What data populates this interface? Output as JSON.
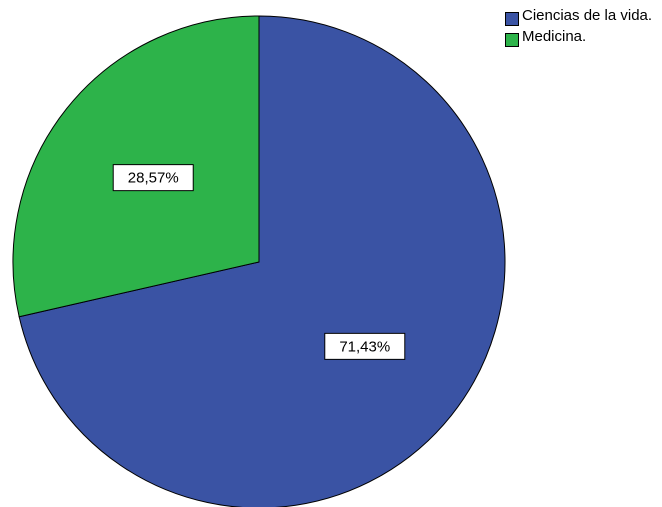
{
  "chart_data": {
    "type": "pie",
    "slices": [
      {
        "label": "Ciencias de la vida.",
        "value": 71.43,
        "value_label": "71,43%",
        "color": "#3a53a4"
      },
      {
        "label": "Medicina.",
        "value": 28.57,
        "value_label": "28,57%",
        "color": "#2db34a"
      }
    ],
    "start_angle_deg": 0,
    "direction": "clockwise",
    "legend_position": "top-right"
  }
}
